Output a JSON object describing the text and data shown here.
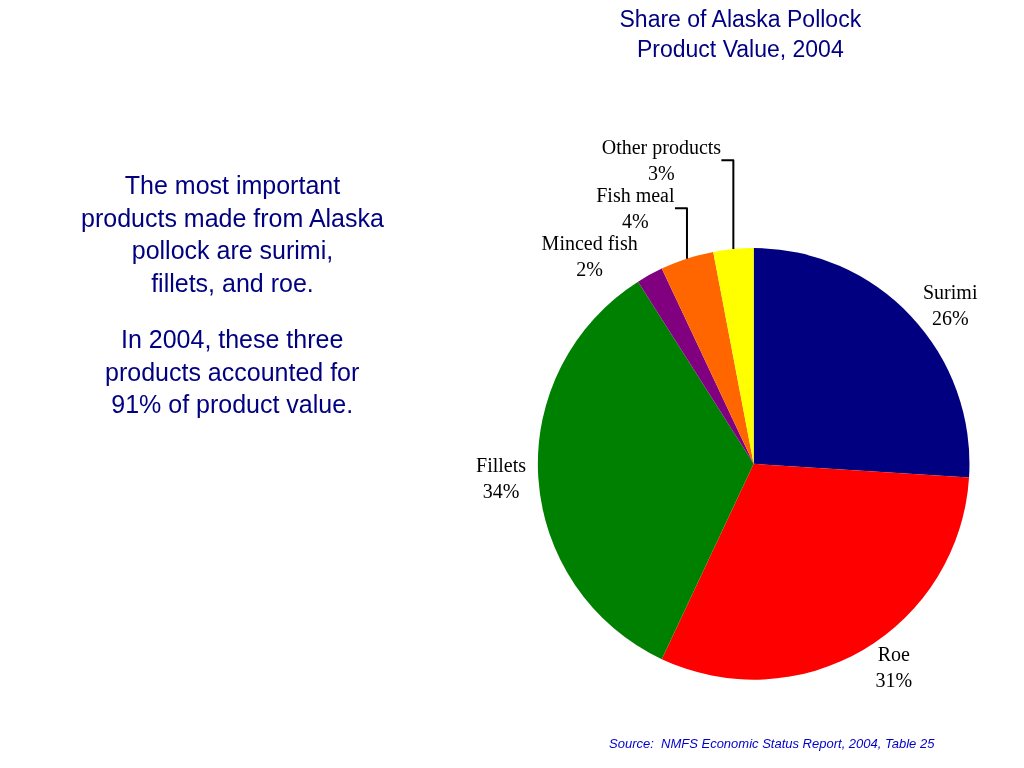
{
  "chart_data": {
    "type": "pie",
    "title": "Share of Alaska Pollock Product Value, 2004",
    "categories": [
      "Surimi",
      "Roe",
      "Fillets",
      "Minced fish",
      "Fish meal",
      "Other products"
    ],
    "values": [
      26,
      31,
      34,
      2,
      4,
      3
    ],
    "value_labels": [
      "26%",
      "31%",
      "34%",
      "2%",
      "4%",
      "3%"
    ],
    "colors": [
      "#000080",
      "#ff0000",
      "#008000",
      "#800080",
      "#ff6600",
      "#ffff00"
    ],
    "legend": false,
    "annotations": [
      "The most important products made from Alaska pollock are surimi, fillets, and roe.",
      "In 2004, these three products accounted for 91% of product value.",
      "Source:  NMFS Economic Status Report, 2004, Table 25"
    ]
  }
}
